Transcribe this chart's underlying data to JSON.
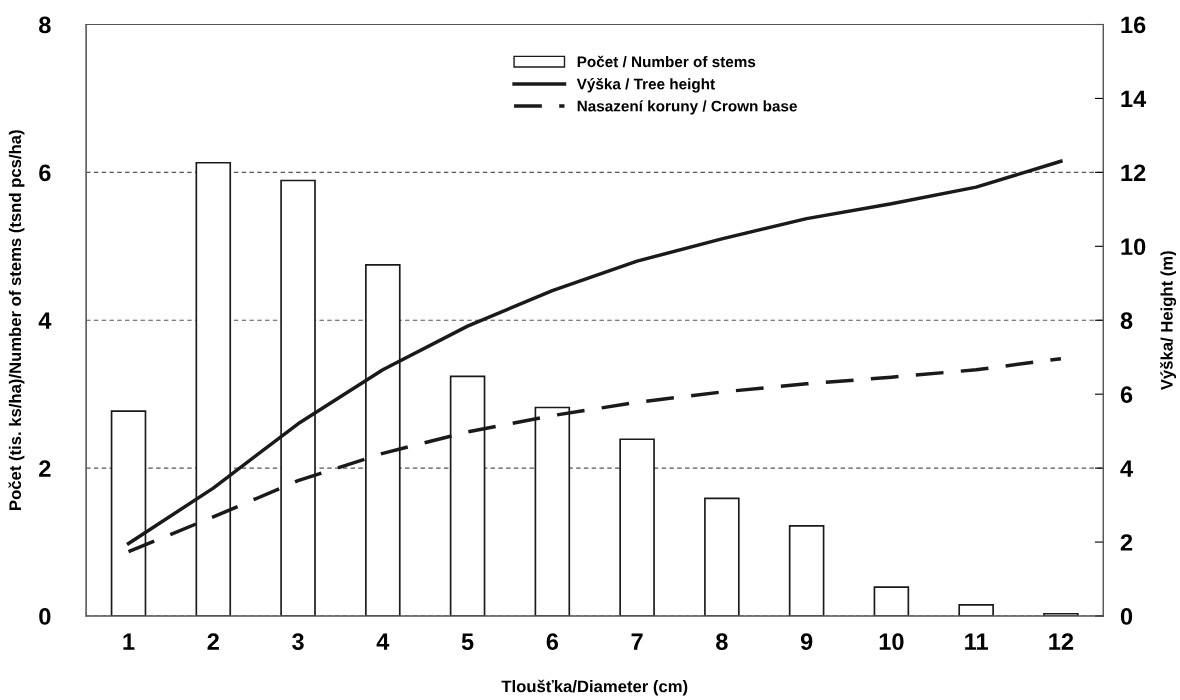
{
  "chart_data": {
    "type": "bar",
    "categories": [
      "1",
      "2",
      "3",
      "4",
      "5",
      "6",
      "7",
      "8",
      "9",
      "10",
      "11",
      "12"
    ],
    "xlabel": "Tloušťka/Diameter (cm)",
    "ylabel": "Počet (tis. ks/ha)/Number of stems (tsnd pcs/ha)",
    "y2label": "Výška/ Height (m)",
    "series": [
      {
        "name": "Počet / Number of stems",
        "color": "#ffffff",
        "values": [
          2.77,
          6.13,
          5.89,
          4.75,
          3.24,
          2.82,
          2.39,
          1.59,
          1.22,
          0.39,
          0.15,
          0.03
        ]
      },
      {
        "name": "Výška / Tree height",
        "type": "line",
        "axis": "y2",
        "color": "#1a1a1a",
        "line_style": "solid",
        "values": [
          1.96,
          3.46,
          5.2,
          6.66,
          7.84,
          8.8,
          9.6,
          10.2,
          10.75,
          11.15,
          11.6,
          12.3
        ]
      },
      {
        "name": "Nasazení koruny / Crown base",
        "type": "line",
        "axis": "y2",
        "color": "#1a1a1a",
        "line_style": "dashed",
        "values": [
          1.74,
          2.68,
          3.66,
          4.4,
          4.98,
          5.42,
          5.78,
          6.06,
          6.28,
          6.46,
          6.66,
          6.96
        ]
      }
    ],
    "ylim": [
      0,
      8
    ],
    "yticks": [
      0,
      2,
      4,
      6,
      8
    ],
    "y2lim": [
      0,
      16
    ],
    "y2ticks": [
      0,
      2,
      4,
      6,
      8,
      10,
      12,
      14,
      16
    ],
    "grid": "y",
    "legend": "top"
  }
}
